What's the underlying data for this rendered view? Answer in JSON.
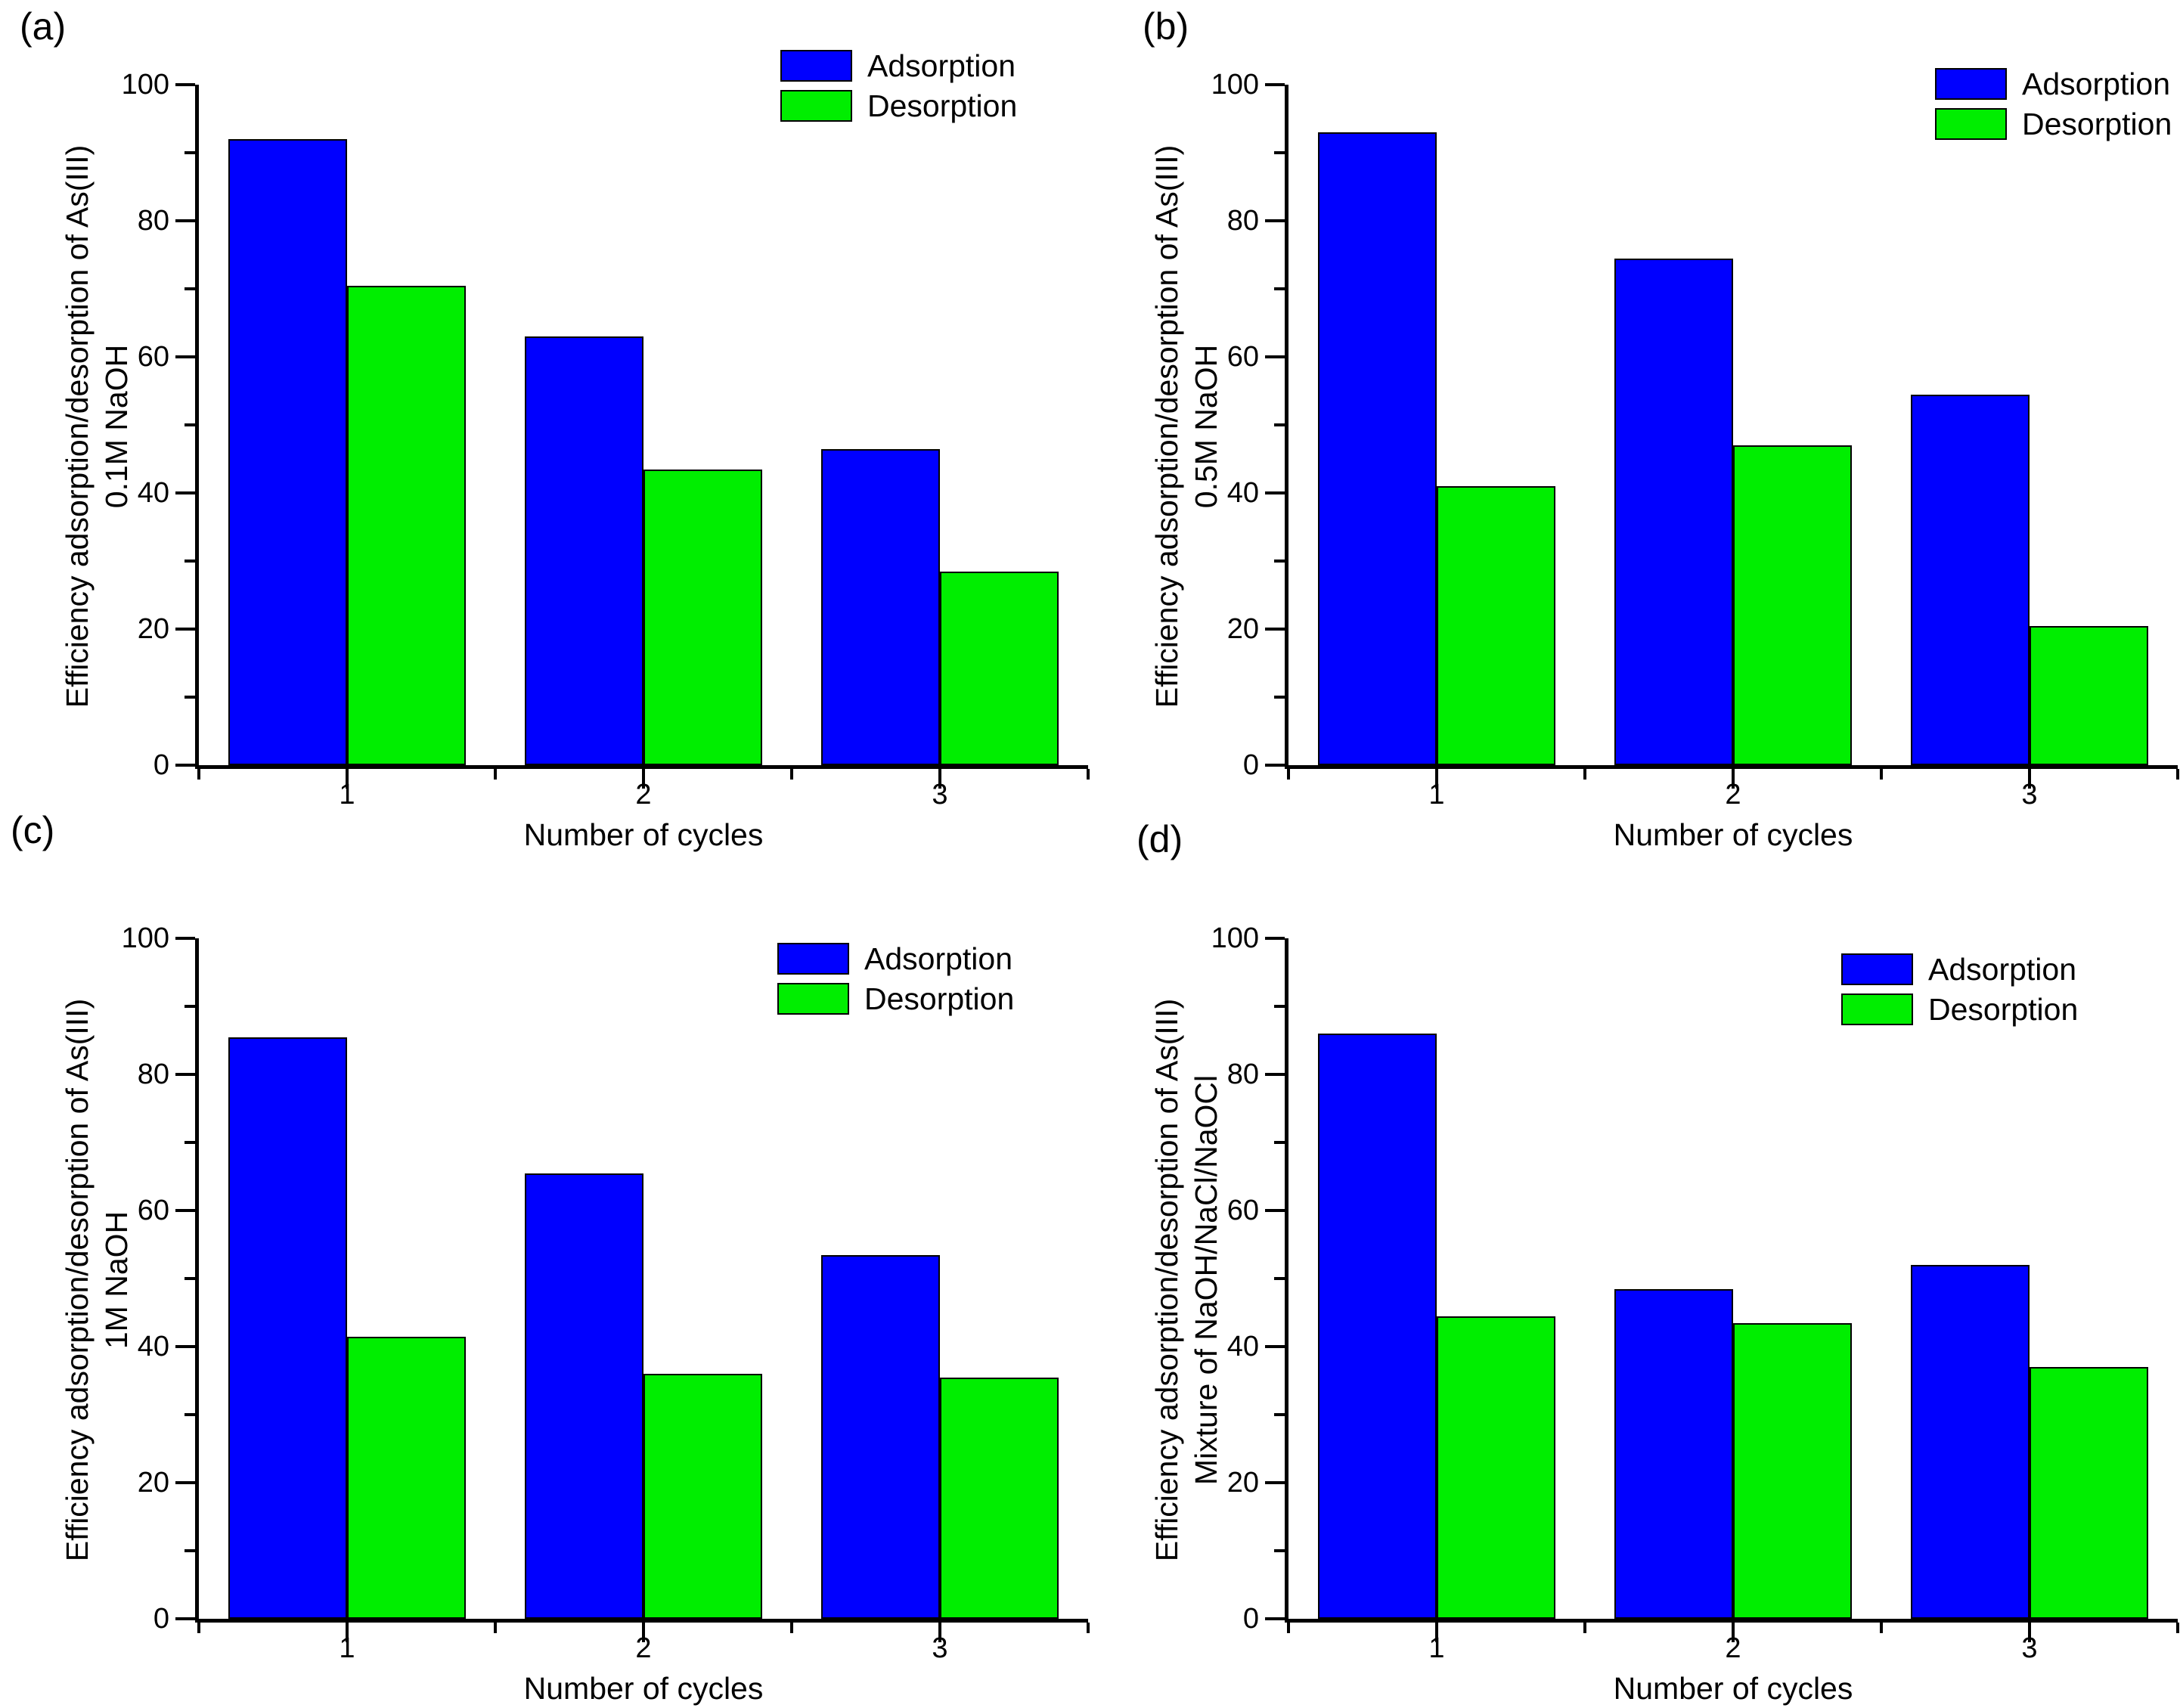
{
  "figure": {
    "background": "#ffffff",
    "axis_color": "#000000",
    "text_color": "#000000"
  },
  "colors": {
    "adsorption": "#0000FF",
    "desorption": "#00EE00"
  },
  "chart_data": [
    {
      "type": "bar",
      "panel_letter": "(a)",
      "ylabel_line1": "Efficiency adsorption/desorption of As(III)",
      "ylabel_line2": "0.1M NaOH",
      "xlabel": "Number of cycles",
      "categories": [
        "1",
        "2",
        "3"
      ],
      "yticks": [
        "0",
        "20",
        "40",
        "60",
        "80",
        "100"
      ],
      "ylim": [
        0,
        100
      ],
      "y_major_step": 20,
      "y_minor_step": 10,
      "x_range": [
        0.5,
        3.5
      ],
      "bar_width_category_units": 0.4,
      "grid": false,
      "legend_position": "top-right",
      "series": [
        {
          "name": "Adsorption",
          "color": "#0000FF",
          "values": [
            92,
            63,
            46.5
          ]
        },
        {
          "name": "Desorption",
          "color": "#00EE00",
          "values": [
            70.5,
            43.5,
            28.5
          ]
        }
      ]
    },
    {
      "type": "bar",
      "panel_letter": "(b)",
      "ylabel_line1": "Efficiency adsorption/desorption of As(III)",
      "ylabel_line2": "0.5M NaOH",
      "xlabel": "Number of cycles",
      "categories": [
        "1",
        "2",
        "3"
      ],
      "yticks": [
        "0",
        "20",
        "40",
        "60",
        "80",
        "100"
      ],
      "ylim": [
        0,
        100
      ],
      "y_major_step": 20,
      "y_minor_step": 10,
      "x_range": [
        0.5,
        3.5
      ],
      "bar_width_category_units": 0.4,
      "grid": false,
      "legend_position": "top-right",
      "series": [
        {
          "name": "Adsorption",
          "color": "#0000FF",
          "values": [
            93,
            74.5,
            54.5
          ]
        },
        {
          "name": "Desorption",
          "color": "#00EE00",
          "values": [
            41,
            47,
            20.5
          ]
        }
      ]
    },
    {
      "type": "bar",
      "panel_letter": "(c)",
      "ylabel_line1": "Efficiency adsorption/desorption of As(III)",
      "ylabel_line2": "1M NaOH",
      "xlabel": "Number of cycles",
      "categories": [
        "1",
        "2",
        "3"
      ],
      "yticks": [
        "0",
        "20",
        "40",
        "60",
        "80",
        "100"
      ],
      "ylim": [
        0,
        100
      ],
      "y_major_step": 20,
      "y_minor_step": 10,
      "x_range": [
        0.5,
        3.5
      ],
      "bar_width_category_units": 0.4,
      "grid": false,
      "legend_position": "top-right",
      "series": [
        {
          "name": "Adsorption",
          "color": "#0000FF",
          "values": [
            85.5,
            65.5,
            53.5
          ]
        },
        {
          "name": "Desorption",
          "color": "#00EE00",
          "values": [
            41.5,
            36,
            35.5
          ]
        }
      ]
    },
    {
      "type": "bar",
      "panel_letter": "(d)",
      "ylabel_line1": "Efficiency adsorption/desorption of As(III)",
      "ylabel_line2": "Mixture of NaOH/NaCl/NaOCl",
      "xlabel": "Number of cycles",
      "categories": [
        "1",
        "2",
        "3"
      ],
      "yticks": [
        "0",
        "20",
        "40",
        "60",
        "80",
        "100"
      ],
      "ylim": [
        0,
        100
      ],
      "y_major_step": 20,
      "y_minor_step": 10,
      "x_range": [
        0.5,
        3.5
      ],
      "bar_width_category_units": 0.4,
      "grid": false,
      "legend_position": "top-right",
      "series": [
        {
          "name": "Adsorption",
          "color": "#0000FF",
          "values": [
            86,
            48.5,
            52
          ]
        },
        {
          "name": "Desorption",
          "color": "#00EE00",
          "values": [
            44.5,
            43.5,
            37
          ]
        }
      ]
    }
  ]
}
